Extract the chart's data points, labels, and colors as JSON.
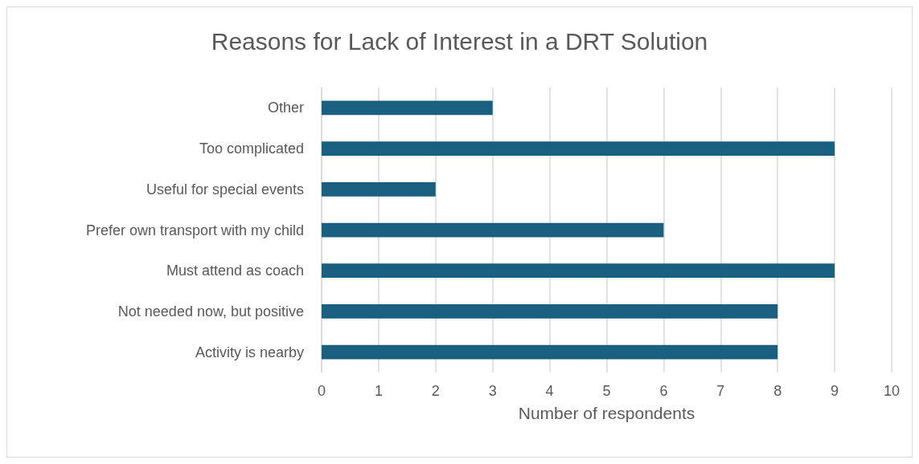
{
  "chart_data": {
    "type": "bar",
    "orientation": "horizontal",
    "title": "Reasons for Lack of Interest in a DRT Solution",
    "xlabel": "Number of respondents",
    "categories": [
      "Other",
      "Too complicated",
      "Useful for special events",
      "Prefer own transport with my child",
      "Must attend as coach",
      "Not needed now, but positive",
      "Activity is nearby"
    ],
    "values": [
      3,
      9,
      2,
      6,
      9,
      8,
      8
    ],
    "color": "#1a5f80",
    "xlim": [
      0,
      10
    ],
    "xticks": [
      0,
      1,
      2,
      3,
      4,
      5,
      6,
      7,
      8,
      9,
      10
    ],
    "grid": "x"
  }
}
